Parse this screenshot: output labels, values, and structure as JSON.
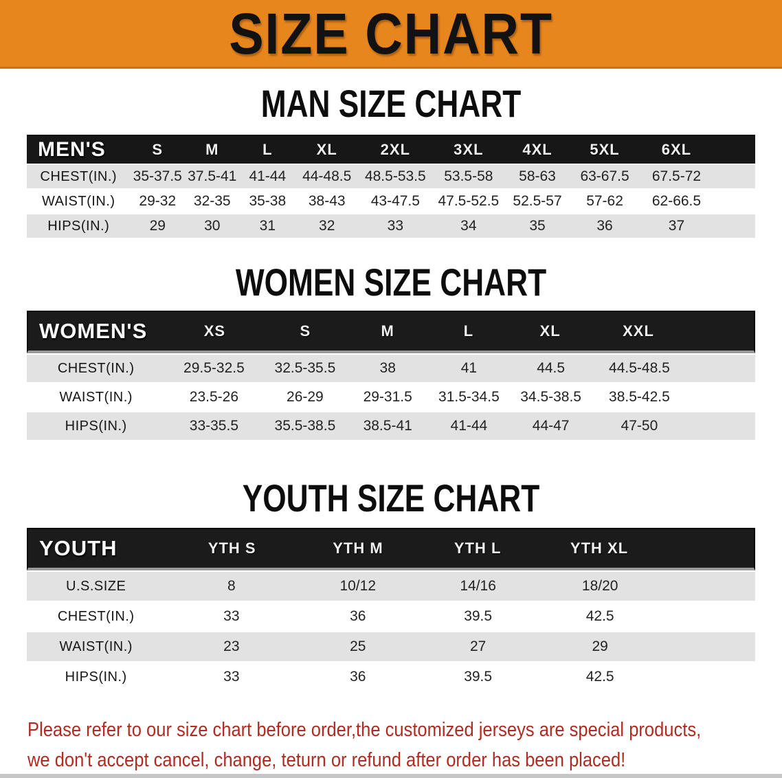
{
  "banner": {
    "title": "SIZE CHART"
  },
  "men": {
    "heading": "MAN SIZE CHART",
    "corner": "MEN'S",
    "sizes": [
      "S",
      "M",
      "L",
      "XL",
      "2XL",
      "3XL",
      "4XL",
      "5XL",
      "6XL"
    ],
    "rows": [
      {
        "label": "CHEST(IN.)",
        "values": [
          "35-37.5",
          "37.5-41",
          "41-44",
          "44-48.5",
          "48.5-53.5",
          "53.5-58",
          "58-63",
          "63-67.5",
          "67.5-72"
        ]
      },
      {
        "label": "WAIST(IN.)",
        "values": [
          "29-32",
          "32-35",
          "35-38",
          "38-43",
          "43-47.5",
          "47.5-52.5",
          "52.5-57",
          "57-62",
          "62-66.5"
        ]
      },
      {
        "label": "HIPS(IN.)",
        "values": [
          "29",
          "30",
          "31",
          "32",
          "33",
          "34",
          "35",
          "36",
          "37"
        ]
      }
    ]
  },
  "women": {
    "heading": "WOMEN SIZE CHART",
    "corner": "WOMEN'S",
    "sizes": [
      "XS",
      "S",
      "M",
      "L",
      "XL",
      "XXL"
    ],
    "rows": [
      {
        "label": "CHEST(IN.)",
        "values": [
          "29.5-32.5",
          "32.5-35.5",
          "38",
          "41",
          "44.5",
          "44.5-48.5"
        ]
      },
      {
        "label": "WAIST(IN.)",
        "values": [
          "23.5-26",
          "26-29",
          "29-31.5",
          "31.5-34.5",
          "34.5-38.5",
          "38.5-42.5"
        ]
      },
      {
        "label": "HIPS(IN.)",
        "values": [
          "33-35.5",
          "35.5-38.5",
          "38.5-41",
          "41-44",
          "44-47",
          "47-50"
        ]
      }
    ]
  },
  "youth": {
    "heading": "YOUTH SIZE CHART",
    "corner": "YOUTH",
    "sizes": [
      "YTH S",
      "YTH M",
      "YTH L",
      "YTH XL"
    ],
    "rows": [
      {
        "label": "U.S.SIZE",
        "values": [
          "8",
          "10/12",
          "14/16",
          "18/20"
        ]
      },
      {
        "label": "CHEST(IN.)",
        "values": [
          "33",
          "36",
          "39.5",
          "42.5"
        ]
      },
      {
        "label": "WAIST(IN.)",
        "values": [
          "23",
          "25",
          "27",
          "29"
        ]
      },
      {
        "label": "HIPS(IN.)",
        "values": [
          "33",
          "36",
          "39.5",
          "42.5"
        ]
      }
    ]
  },
  "disclaimer": {
    "line1": "Please refer to our size chart before order,the customized jerseys are special products,",
    "line2": "we don't accept cancel, change, teturn or refund after order has been placed!"
  },
  "colors": {
    "banner_orange": "#E8861E",
    "table_header_black": "#171717",
    "row_gray": "#E3E2E2",
    "row_white": "#FFFFFF",
    "disclaimer_red": "#B22A20"
  }
}
